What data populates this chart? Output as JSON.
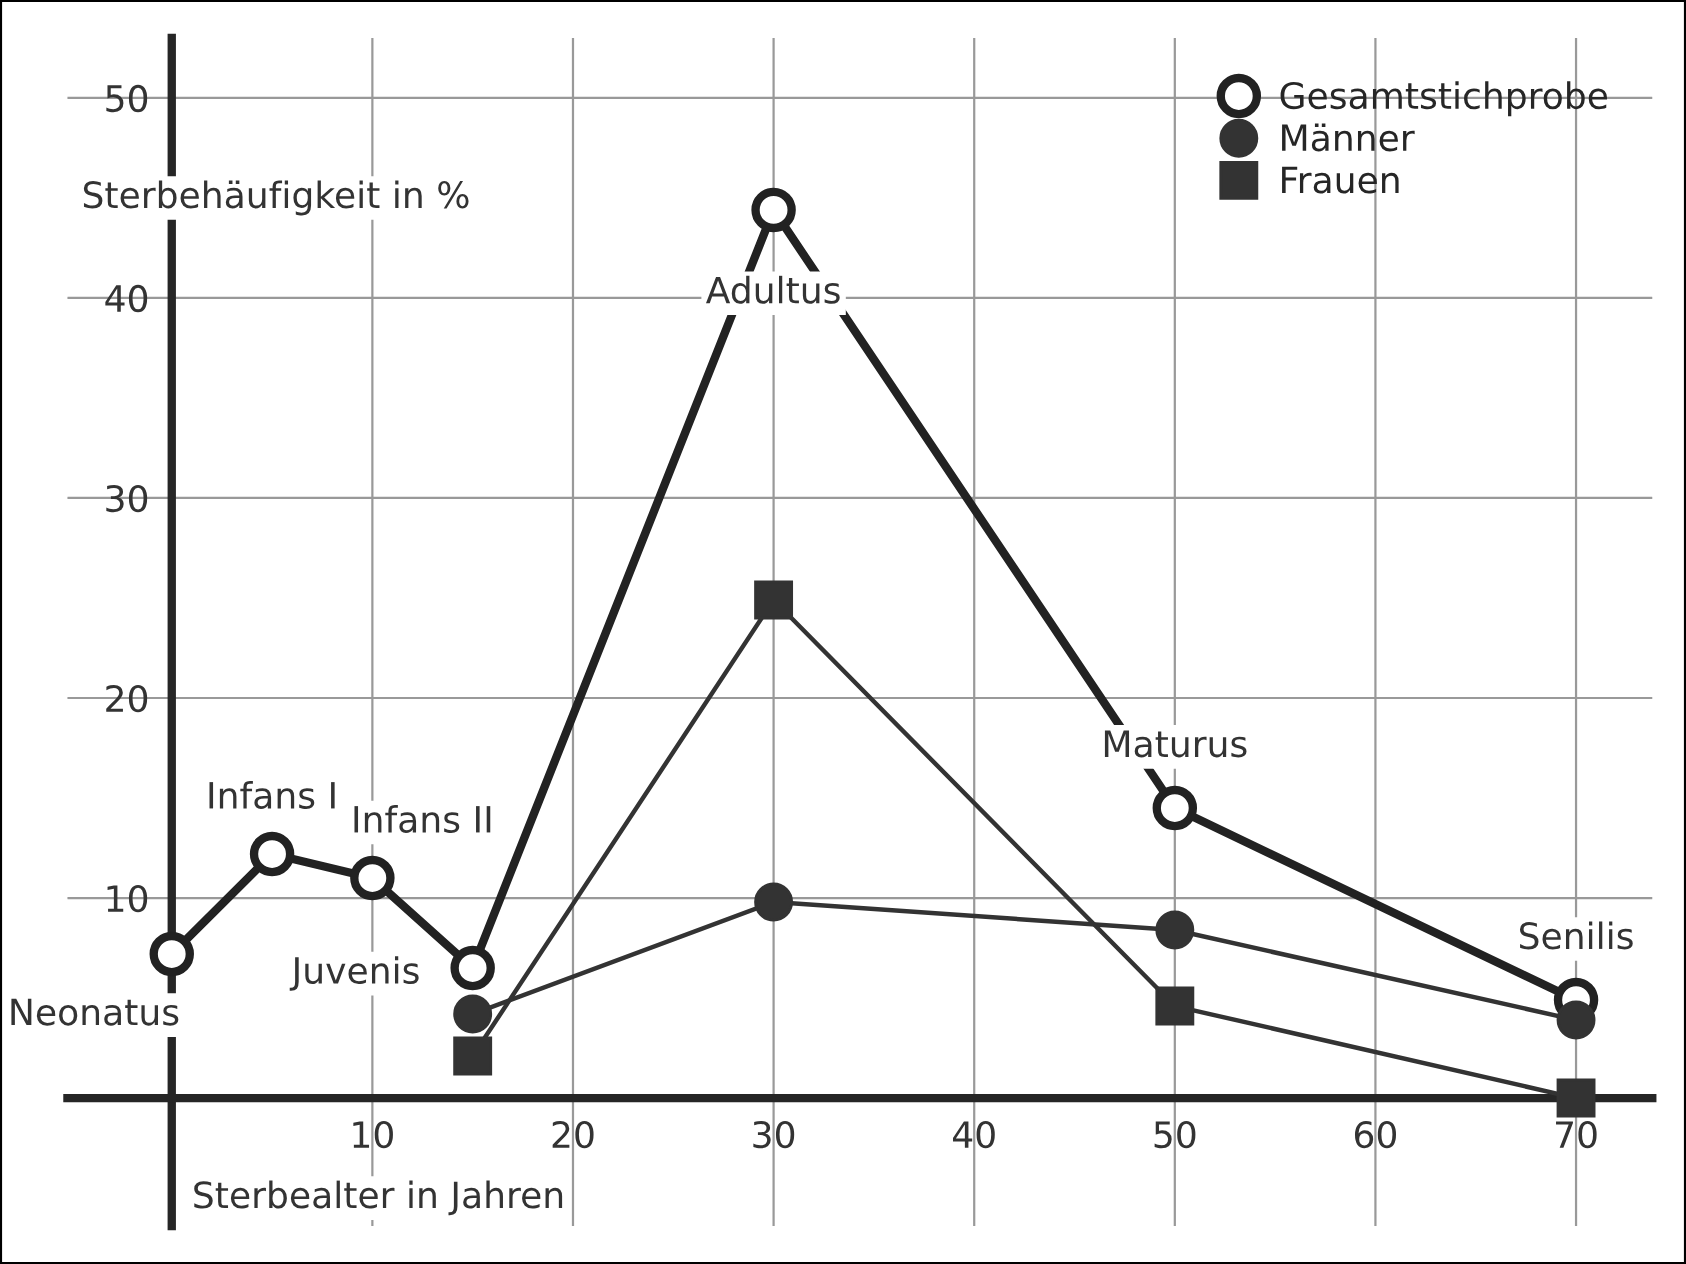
{
  "chart_data": {
    "type": "line",
    "xlabel": "Sterbealter in Jahren",
    "ylabel": "Sterbehäufigkeit in %",
    "xlim": [
      -5.2,
      73.8
    ],
    "ylim": [
      -6.4,
      53
    ],
    "xticks": [
      10,
      20,
      30,
      40,
      50,
      60,
      70
    ],
    "yticks": [
      10,
      20,
      30,
      40,
      50
    ],
    "grid": true,
    "legend": "top right",
    "series": [
      {
        "name": "Gesamtstichprobe",
        "color": "#222222",
        "marker": "circle",
        "x": [
          0,
          5,
          10,
          15,
          30,
          50,
          70
        ],
        "values": [
          7.2,
          12.2,
          11,
          6.5,
          44.4,
          14.5,
          4.9
        ]
      },
      {
        "name": "Männer",
        "color": "#333333",
        "marker": "circle",
        "x": [
          15,
          30,
          50,
          70
        ],
        "values": [
          4.2,
          9.8,
          8.4,
          3.9
        ]
      },
      {
        "name": "Frauen",
        "color": "#333333",
        "marker": "square",
        "x": [
          15,
          30,
          50,
          70
        ],
        "values": [
          2.1,
          24.9,
          4.6,
          0
        ]
      }
    ],
    "annotations": [
      {
        "text": "Neonatus",
        "x": 0,
        "y": 7.2
      },
      {
        "text": "Infans I",
        "x": 5,
        "y": 12.2
      },
      {
        "text": "Infans II",
        "x": 10,
        "y": 11
      },
      {
        "text": "Juvenis",
        "x": 15,
        "y": 6.5
      },
      {
        "text": "Adultus",
        "x": 30,
        "y": 44.4
      },
      {
        "text": "Maturus",
        "x": 50,
        "y": 14.5
      },
      {
        "text": "Senilis",
        "x": 70,
        "y": 4.9
      }
    ]
  }
}
